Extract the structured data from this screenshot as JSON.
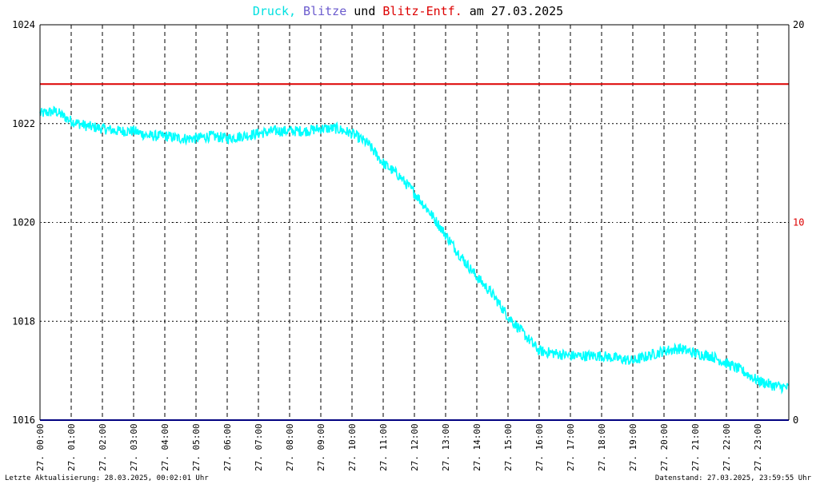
{
  "header": {
    "t1": "Druck,",
    "t2": " ",
    "t3": "Blitze",
    "t4": " und ",
    "t5": "Blitz-Entf.",
    "t6": " am 27.03.2025"
  },
  "footer": {
    "left": "Letzte Aktualisierung: 28.03.2025, 00:02:01 Uhr",
    "right": "Datenstand: 27.03.2025, 23:59:55 Uhr"
  },
  "colors": {
    "druck": "#00ffff",
    "blitze": "#6a5acd",
    "blitz_entf": "#dd0000",
    "baseline": "#000080"
  },
  "chart_data": {
    "type": "line",
    "title": "Druck, Blitze und Blitz-Entf. am 27.03.2025",
    "x_ticks": [
      "27. 00:00",
      "27. 01:00",
      "27. 02:00",
      "27. 03:00",
      "27. 04:00",
      "27. 05:00",
      "27. 06:00",
      "27. 07:00",
      "27. 08:00",
      "27. 09:00",
      "27. 10:00",
      "27. 11:00",
      "27. 12:00",
      "27. 13:00",
      "27. 14:00",
      "27. 15:00",
      "27. 16:00",
      "27. 17:00",
      "27. 18:00",
      "27. 19:00",
      "27. 20:00",
      "27. 21:00",
      "27. 22:00",
      "27. 23:00"
    ],
    "y_left": {
      "ticks": [
        "1016",
        "1018",
        "1020",
        "1022",
        "1024"
      ],
      "lim": [
        1016,
        1024
      ]
    },
    "y_right": {
      "ticks": [
        "0",
        "10",
        "20"
      ],
      "lim": [
        0,
        20
      ]
    },
    "grid": true,
    "series": [
      {
        "name": "Druck",
        "axis": "left",
        "x_hours": [
          0,
          0.5,
          1,
          1.5,
          2,
          2.5,
          3,
          3.5,
          4,
          4.5,
          5,
          5.5,
          6,
          6.5,
          7,
          7.5,
          8,
          8.5,
          9,
          9.5,
          10,
          10.25,
          10.5,
          11,
          11.5,
          12,
          12.5,
          13,
          13.5,
          14,
          14.5,
          15,
          15.5,
          16,
          16.5,
          17,
          17.5,
          18,
          18.5,
          19,
          19.5,
          20,
          20.5,
          21,
          21.5,
          22,
          22.5,
          23,
          23.5,
          24
        ],
        "values": [
          1022.2,
          1022.25,
          1022.05,
          1021.95,
          1021.9,
          1021.85,
          1021.85,
          1021.75,
          1021.75,
          1021.7,
          1021.7,
          1021.75,
          1021.7,
          1021.75,
          1021.8,
          1021.85,
          1021.85,
          1021.85,
          1021.9,
          1021.9,
          1021.8,
          1021.7,
          1021.6,
          1021.2,
          1020.95,
          1020.6,
          1020.2,
          1019.75,
          1019.3,
          1018.9,
          1018.55,
          1018.1,
          1017.75,
          1017.4,
          1017.35,
          1017.3,
          1017.3,
          1017.3,
          1017.25,
          1017.2,
          1017.3,
          1017.4,
          1017.45,
          1017.35,
          1017.3,
          1017.15,
          1017.0,
          1016.8,
          1016.7,
          1016.65
        ]
      },
      {
        "name": "Blitze",
        "axis": "right",
        "x_hours": [
          0,
          24
        ],
        "values": [
          0,
          0
        ]
      },
      {
        "name": "Blitz-Entf.",
        "axis": "right",
        "x_hours": [
          0,
          24
        ],
        "values": [
          17,
          17
        ]
      }
    ]
  }
}
